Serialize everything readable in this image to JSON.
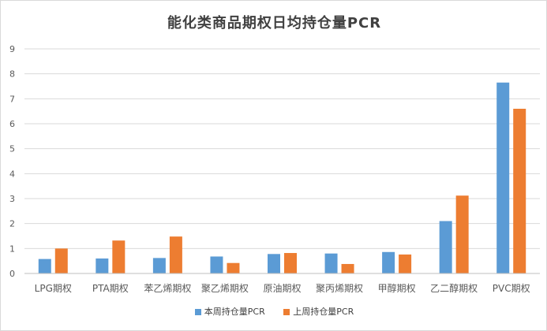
{
  "chart_data": {
    "type": "bar",
    "title": "能化类商品期权日均持仓量PCR",
    "categories": [
      "LPG期权",
      "PTA期权",
      "苯乙烯期权",
      "聚乙烯期权",
      "原油期权",
      "聚丙烯期权",
      "甲醇期权",
      "乙二醇期权",
      "PVC期权"
    ],
    "series": [
      {
        "name": "本周持仓量PCR",
        "color": "#5b9bd5",
        "values": [
          0.58,
          0.6,
          0.62,
          0.68,
          0.78,
          0.8,
          0.86,
          2.1,
          7.65
        ]
      },
      {
        "name": "上周持仓量PCR",
        "color": "#ed7d31",
        "values": [
          1.0,
          1.32,
          1.48,
          0.42,
          0.82,
          0.38,
          0.76,
          3.12,
          6.6
        ]
      }
    ],
    "ylim": [
      0,
      9
    ],
    "yticks": [
      0,
      1,
      2,
      3,
      4,
      5,
      6,
      7,
      8,
      9
    ],
    "grid": true,
    "legend_position": "bottom"
  }
}
